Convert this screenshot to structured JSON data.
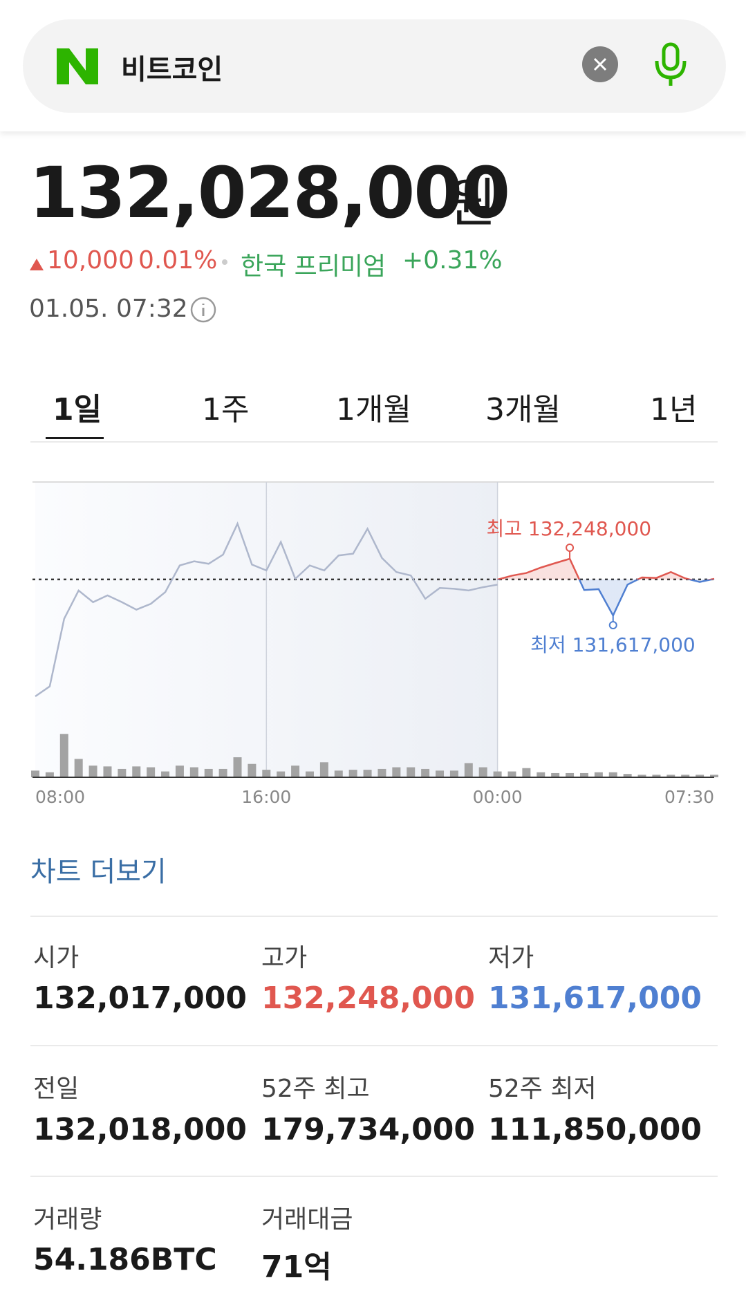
{
  "search": {
    "query": "비트코인"
  },
  "price": {
    "value": "132,028,000",
    "unit": "원",
    "change": "10,000",
    "change_pct": "0.01%",
    "premium_label": "한국 프리미엄",
    "premium": "+0.31%",
    "time": "01.05. 07:32"
  },
  "tabs": [
    "1일",
    "1주",
    "1개월",
    "3개월",
    "1년"
  ],
  "chart_data": {
    "type": "line",
    "categories": [
      "08:00",
      null,
      null,
      null,
      null,
      null,
      null,
      null,
      null,
      null,
      null,
      null,
      null,
      null,
      null,
      null,
      "16:00",
      null,
      null,
      null,
      null,
      null,
      null,
      null,
      null,
      null,
      null,
      null,
      null,
      null,
      null,
      null,
      "00:00",
      null,
      null,
      null,
      null,
      null,
      null,
      null,
      null,
      null,
      null,
      null,
      null,
      null,
      null,
      "07:30"
    ],
    "ylim": [
      129817000,
      133102000
    ],
    "y2lim": [
      0,
      354
    ],
    "baseline": 132018000,
    "series": [
      {
        "color": "#aeb7cc",
        "values": [
          130717000,
          130828000,
          131580000,
          131895000,
          131765000,
          131840000,
          131765000,
          131682000,
          131747000,
          131877000,
          132174000,
          132220000,
          132192000,
          132294000,
          132638000,
          132183000,
          132118000,
          132434000,
          132025000,
          132174000,
          132118000,
          132285000,
          132304000,
          132582000,
          132257000,
          132100000,
          132062000,
          131803000,
          131923000,
          131914000,
          131895000,
          131932000,
          131960000,
          null,
          null,
          null,
          null,
          null,
          null,
          null,
          null,
          null,
          null,
          null,
          null,
          null,
          null,
          null
        ]
      },
      {
        "color": "#e0574f",
        "color_below": "#4f7fd1",
        "values": [
          null,
          null,
          null,
          null,
          null,
          null,
          null,
          null,
          null,
          null,
          null,
          null,
          null,
          null,
          null,
          null,
          null,
          null,
          null,
          null,
          null,
          null,
          null,
          null,
          null,
          null,
          null,
          null,
          null,
          null,
          null,
          null,
          132017000,
          132060000,
          132090000,
          132150000,
          132200000,
          132248000,
          131900000,
          131910000,
          131617000,
          131960000,
          132040000,
          132035000,
          132100000,
          132030000,
          131990000,
          132025000
        ]
      },
      {
        "type": "bar",
        "axis": "y2",
        "color": "#a3a3a3",
        "values": [
          8,
          6,
          52,
          22,
          14,
          13,
          10,
          13,
          12,
          7,
          14,
          12,
          10,
          10,
          24,
          16,
          9,
          7,
          14,
          7,
          18,
          8,
          9,
          9,
          10,
          12,
          12,
          10,
          8,
          8,
          17,
          12,
          7,
          7,
          11,
          6,
          5,
          5,
          5,
          6,
          6,
          4,
          3,
          3,
          3,
          3,
          3,
          3
        ]
      }
    ],
    "annotations": {
      "high": "최고 132,248,000",
      "low": "최저 131,617,000"
    }
  },
  "more_link": "차트 더보기",
  "stats": [
    [
      {
        "label": "시가",
        "value": "132,017,000"
      },
      {
        "label": "고가",
        "value": "132,248,000"
      },
      {
        "label": "저가",
        "value": "131,617,000"
      }
    ],
    [
      {
        "label": "전일",
        "value": "132,018,000"
      },
      {
        "label": "52주 최고",
        "value": "179,734,000"
      },
      {
        "label": "52주 최저",
        "value": "111,850,000"
      }
    ],
    [
      {
        "label": "거래량",
        "value": "54.186BTC"
      },
      {
        "label": "거래대금",
        "value": "71억"
      }
    ]
  ]
}
